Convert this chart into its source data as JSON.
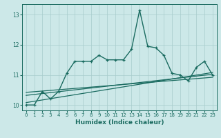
{
  "title": "",
  "xlabel": "Humidex (Indice chaleur)",
  "ylabel": "",
  "bg_color": "#cce8e8",
  "line_color": "#1a6b60",
  "grid_color": "#a8cccc",
  "xlim": [
    -0.5,
    23.5
  ],
  "ylim": [
    9.82,
    13.35
  ],
  "yticks": [
    10,
    11,
    12,
    13
  ],
  "xticks": [
    0,
    1,
    2,
    3,
    4,
    5,
    6,
    7,
    8,
    9,
    10,
    11,
    12,
    13,
    14,
    15,
    16,
    17,
    18,
    19,
    20,
    21,
    22,
    23
  ],
  "main_x": [
    0,
    1,
    2,
    3,
    4,
    5,
    6,
    7,
    8,
    9,
    10,
    11,
    12,
    13,
    14,
    15,
    16,
    17,
    18,
    19,
    20,
    21,
    22,
    23
  ],
  "main_y": [
    10.0,
    10.0,
    10.45,
    10.2,
    10.45,
    11.05,
    11.45,
    11.45,
    11.45,
    11.65,
    11.5,
    11.5,
    11.5,
    11.85,
    13.15,
    11.95,
    11.9,
    11.65,
    11.05,
    11.0,
    10.8,
    11.25,
    11.45,
    11.0
  ],
  "trend1_x": [
    0,
    23
  ],
  "trend1_y": [
    10.42,
    10.92
  ],
  "trend2_x": [
    0,
    23
  ],
  "trend2_y": [
    10.32,
    11.02
  ],
  "trend3_x": [
    0,
    23
  ],
  "trend3_y": [
    10.08,
    11.08
  ],
  "marker_size": 2.8,
  "lw_main": 1.0,
  "lw_trend": 0.9
}
